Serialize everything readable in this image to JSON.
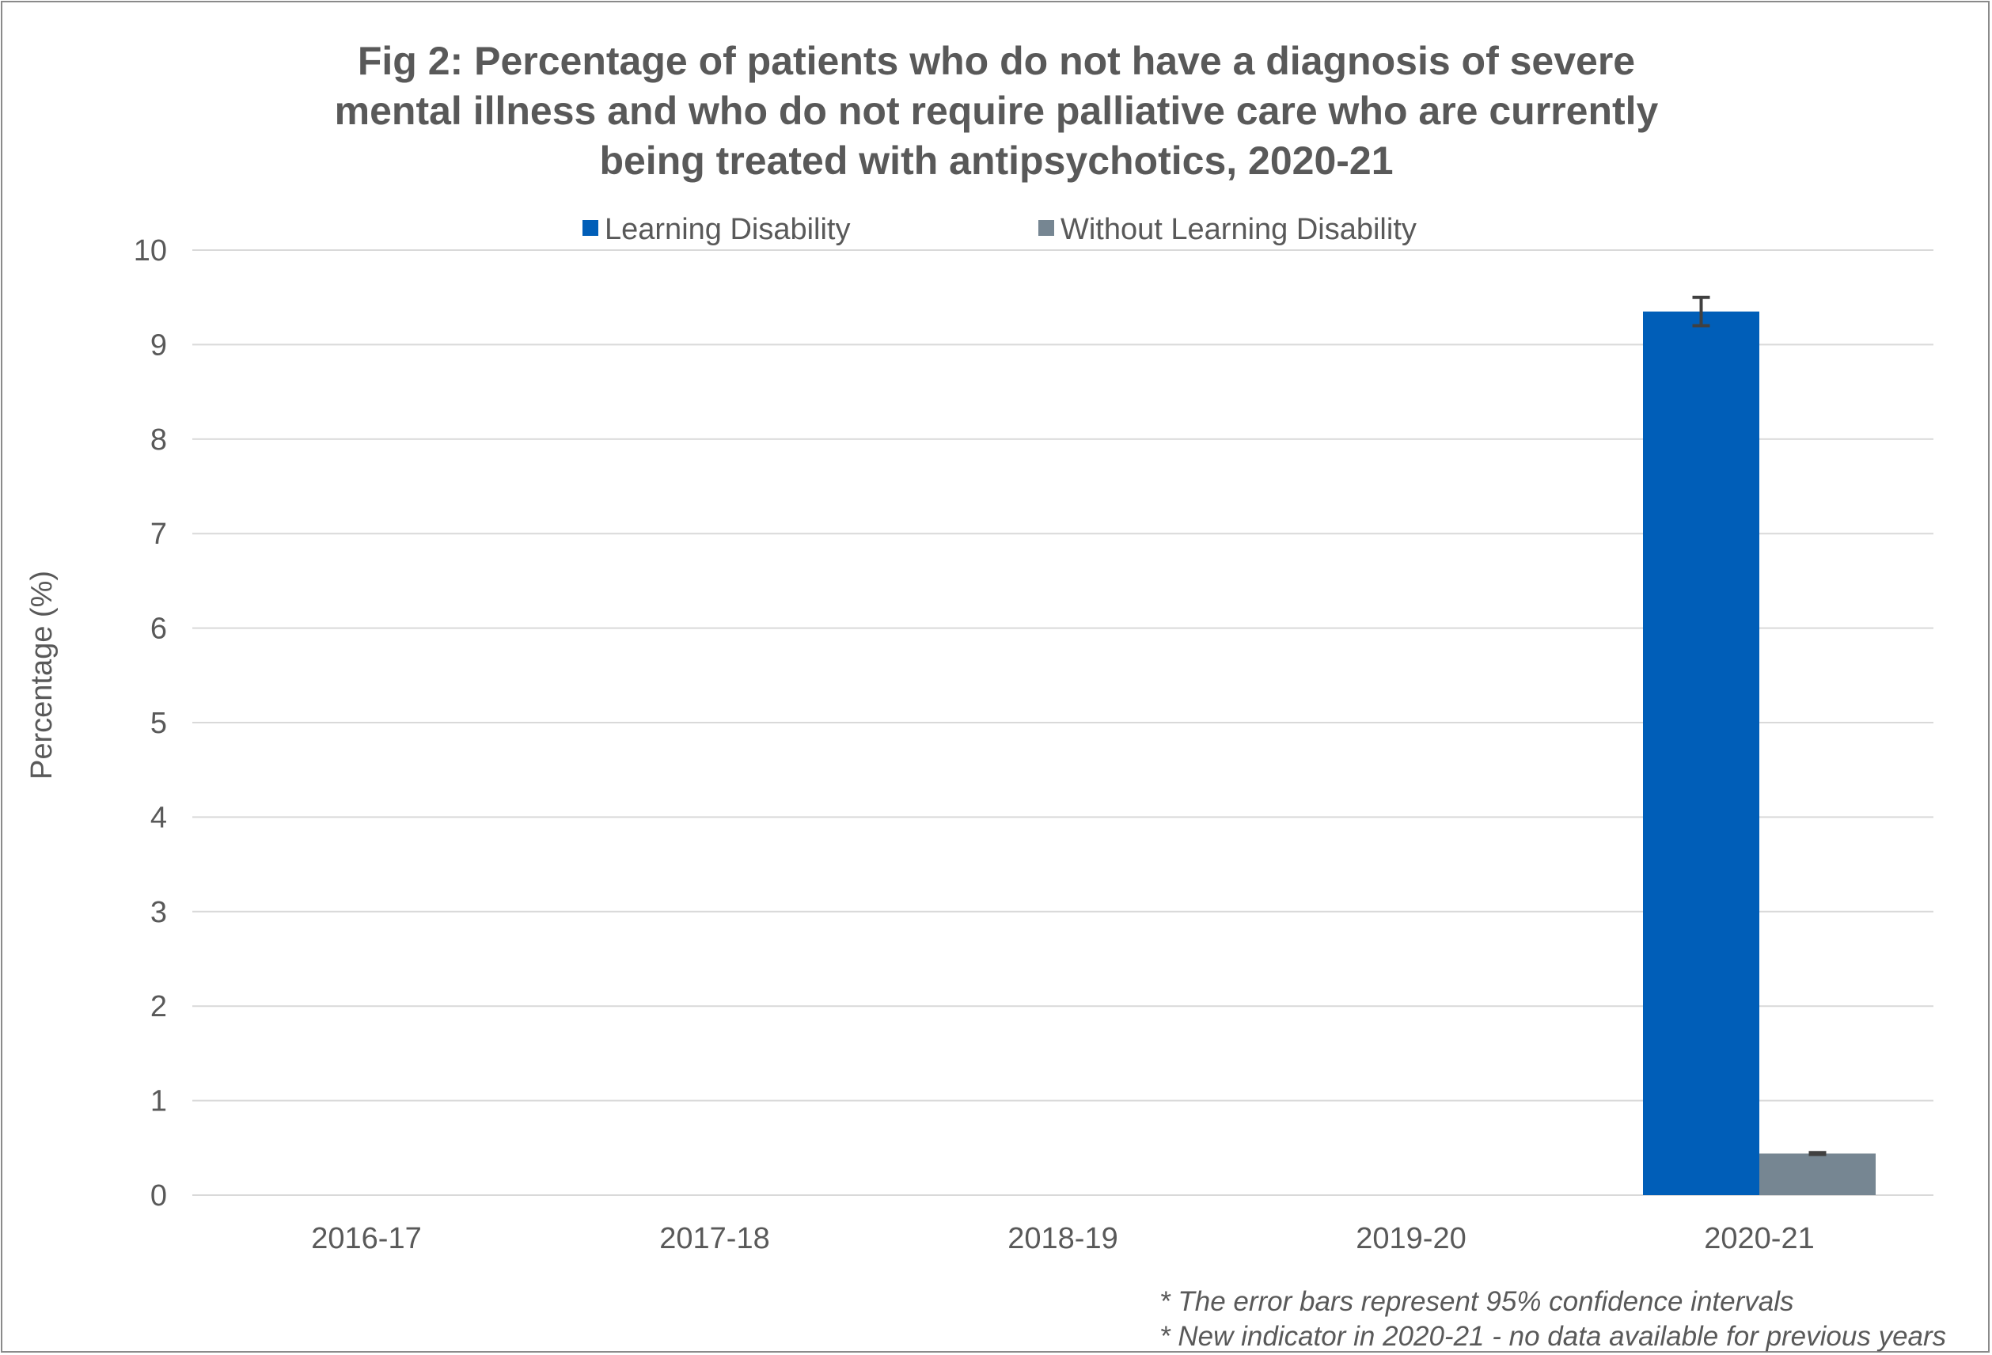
{
  "chart_data": {
    "type": "bar",
    "title_lines": [
      "Fig 2:  Percentage of patients  who do not have a diagnosis of severe",
      "mental illness and who do not require palliative care who are currently",
      "being treated with antipsychotics, 2020-21"
    ],
    "ylabel": "Percentage (%)",
    "xlabel": "",
    "ylim": [
      0,
      10
    ],
    "yticks": [
      "0",
      "1",
      "2",
      "3",
      "4",
      "5",
      "6",
      "7",
      "8",
      "9",
      "10"
    ],
    "categories": [
      "2016-17",
      "2017-18",
      "2018-19",
      "2019-20",
      "2020-21"
    ],
    "series": [
      {
        "name": "Learning Disability",
        "color": "#005eb8",
        "values": [
          null,
          null,
          null,
          null,
          9.35
        ],
        "ci_lower": [
          null,
          null,
          null,
          null,
          9.2
        ],
        "ci_upper": [
          null,
          null,
          null,
          null,
          9.5
        ]
      },
      {
        "name": "Without Learning Disability",
        "color": "#768692",
        "values": [
          null,
          null,
          null,
          null,
          0.44
        ],
        "ci_lower": [
          null,
          null,
          null,
          null,
          0.43
        ],
        "ci_upper": [
          null,
          null,
          null,
          null,
          0.45
        ]
      }
    ],
    "grid": true,
    "legend_position": "top",
    "error_bar_color": "#404040",
    "footnotes": [
      "* The error bars represent 95% confidence intervals",
      "* New indicator in 2020-21 - no data available for previous years"
    ]
  }
}
